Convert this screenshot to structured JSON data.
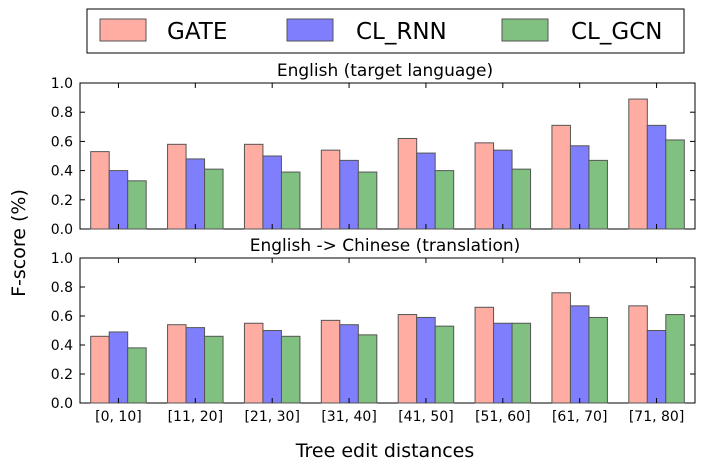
{
  "chart_data": {
    "type": "bar",
    "ylabel": "F-score (%)",
    "xlabel": "Tree edit distances",
    "categories": [
      "[0, 10]",
      "[11, 20]",
      "[21, 30]",
      "[31, 40]",
      "[41, 50]",
      "[51, 60]",
      "[61, 70]",
      "[71, 80]"
    ],
    "legend": {
      "placement": "top",
      "entries": [
        "GATE",
        "CL_RNN",
        "CL_GCN"
      ]
    },
    "series_colors": [
      "#ffada3",
      "#7f7ffe",
      "#80c080"
    ],
    "panels": [
      {
        "title": "English (target language)",
        "ylim": [
          0,
          1.0
        ],
        "yticks": [
          "0.0",
          "0.2",
          "0.4",
          "0.6",
          "0.8",
          "1.0"
        ],
        "series": [
          {
            "name": "GATE",
            "values": [
              0.53,
              0.58,
              0.58,
              0.54,
              0.62,
              0.59,
              0.71,
              0.89
            ]
          },
          {
            "name": "CL_RNN",
            "values": [
              0.4,
              0.48,
              0.5,
              0.47,
              0.52,
              0.54,
              0.57,
              0.71
            ]
          },
          {
            "name": "CL_GCN",
            "values": [
              0.33,
              0.41,
              0.39,
              0.39,
              0.4,
              0.41,
              0.47,
              0.61
            ]
          }
        ]
      },
      {
        "title": "English -> Chinese (translation)",
        "ylim": [
          0,
          1.0
        ],
        "yticks": [
          "0.0",
          "0.2",
          "0.4",
          "0.6",
          "0.8",
          "1.0"
        ],
        "series": [
          {
            "name": "GATE",
            "values": [
              0.46,
              0.54,
              0.55,
              0.57,
              0.61,
              0.66,
              0.76,
              0.67
            ]
          },
          {
            "name": "CL_RNN",
            "values": [
              0.49,
              0.52,
              0.5,
              0.54,
              0.59,
              0.55,
              0.67,
              0.5
            ]
          },
          {
            "name": "CL_GCN",
            "values": [
              0.38,
              0.46,
              0.46,
              0.47,
              0.53,
              0.55,
              0.59,
              0.61
            ]
          }
        ]
      }
    ]
  }
}
